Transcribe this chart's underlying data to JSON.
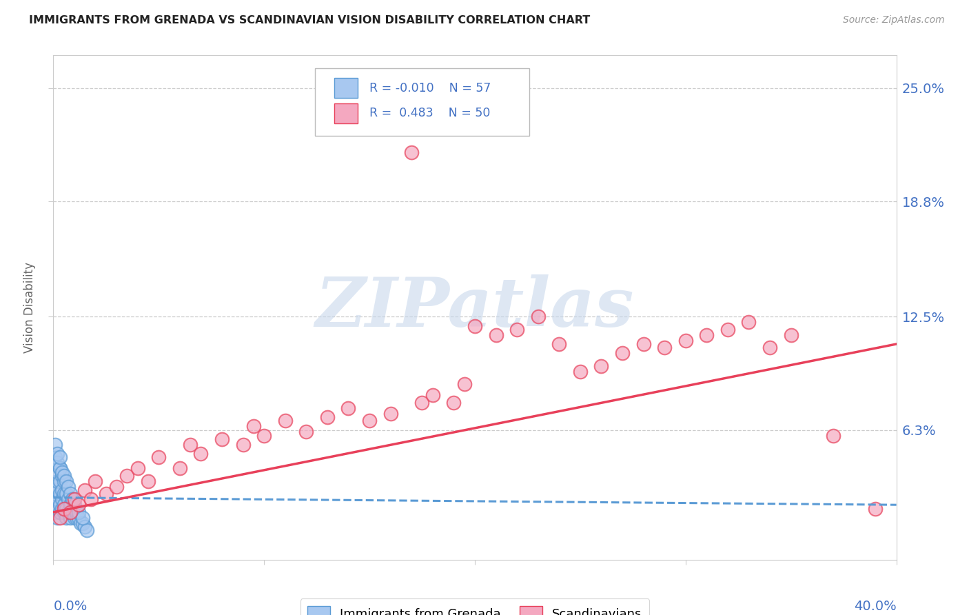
{
  "title": "IMMIGRANTS FROM GRENADA VS SCANDINAVIAN VISION DISABILITY CORRELATION CHART",
  "source": "Source: ZipAtlas.com",
  "ylabel": "Vision Disability",
  "ytick_labels": [
    "6.3%",
    "12.5%",
    "18.8%",
    "25.0%"
  ],
  "ytick_values": [
    0.063,
    0.125,
    0.188,
    0.25
  ],
  "xlim": [
    0.0,
    0.4
  ],
  "ylim": [
    -0.008,
    0.268
  ],
  "color_blue": "#A8C8F0",
  "color_pink": "#F4A8C0",
  "line_blue": "#5B9BD5",
  "line_pink": "#E8405A",
  "text_color": "#4472C4",
  "watermark_color": "#C8D8EC",
  "background_color": "#FFFFFF",
  "grid_color": "#CCCCCC",
  "grenada_x": [
    0.001,
    0.001,
    0.001,
    0.001,
    0.001,
    0.002,
    0.002,
    0.002,
    0.002,
    0.002,
    0.002,
    0.003,
    0.003,
    0.003,
    0.003,
    0.003,
    0.004,
    0.004,
    0.004,
    0.004,
    0.005,
    0.005,
    0.005,
    0.005,
    0.006,
    0.006,
    0.006,
    0.007,
    0.007,
    0.008,
    0.008,
    0.009,
    0.009,
    0.01,
    0.01,
    0.011,
    0.011,
    0.012,
    0.013,
    0.014,
    0.015,
    0.016,
    0.001,
    0.001,
    0.002,
    0.002,
    0.003,
    0.003,
    0.004,
    0.005,
    0.006,
    0.007,
    0.008,
    0.009,
    0.01,
    0.012,
    0.014
  ],
  "grenada_y": [
    0.018,
    0.022,
    0.025,
    0.028,
    0.032,
    0.015,
    0.02,
    0.025,
    0.03,
    0.035,
    0.04,
    0.018,
    0.022,
    0.028,
    0.035,
    0.042,
    0.02,
    0.025,
    0.03,
    0.038,
    0.018,
    0.022,
    0.028,
    0.035,
    0.015,
    0.02,
    0.028,
    0.018,
    0.025,
    0.015,
    0.022,
    0.018,
    0.025,
    0.015,
    0.02,
    0.015,
    0.018,
    0.015,
    0.012,
    0.012,
    0.01,
    0.008,
    0.048,
    0.055,
    0.045,
    0.05,
    0.042,
    0.048,
    0.04,
    0.038,
    0.035,
    0.032,
    0.028,
    0.025,
    0.022,
    0.018,
    0.015
  ],
  "scandinavian_x": [
    0.003,
    0.005,
    0.008,
    0.01,
    0.012,
    0.015,
    0.018,
    0.02,
    0.025,
    0.03,
    0.035,
    0.04,
    0.045,
    0.05,
    0.06,
    0.065,
    0.07,
    0.08,
    0.09,
    0.095,
    0.1,
    0.11,
    0.12,
    0.13,
    0.14,
    0.15,
    0.16,
    0.17,
    0.175,
    0.18,
    0.19,
    0.195,
    0.2,
    0.21,
    0.22,
    0.23,
    0.24,
    0.25,
    0.26,
    0.27,
    0.28,
    0.29,
    0.3,
    0.31,
    0.32,
    0.33,
    0.34,
    0.35,
    0.37,
    0.39
  ],
  "scandinavian_y": [
    0.015,
    0.02,
    0.018,
    0.025,
    0.022,
    0.03,
    0.025,
    0.035,
    0.028,
    0.032,
    0.038,
    0.042,
    0.035,
    0.048,
    0.042,
    0.055,
    0.05,
    0.058,
    0.055,
    0.065,
    0.06,
    0.068,
    0.062,
    0.07,
    0.075,
    0.068,
    0.072,
    0.215,
    0.078,
    0.082,
    0.078,
    0.088,
    0.12,
    0.115,
    0.118,
    0.125,
    0.11,
    0.095,
    0.098,
    0.105,
    0.11,
    0.108,
    0.112,
    0.115,
    0.118,
    0.122,
    0.108,
    0.115,
    0.06,
    0.02
  ],
  "grenada_line_x": [
    0.0,
    0.4
  ],
  "grenada_line_y": [
    0.026,
    0.022
  ],
  "scand_line_x": [
    0.0,
    0.4
  ],
  "scand_line_y": [
    0.018,
    0.11
  ]
}
